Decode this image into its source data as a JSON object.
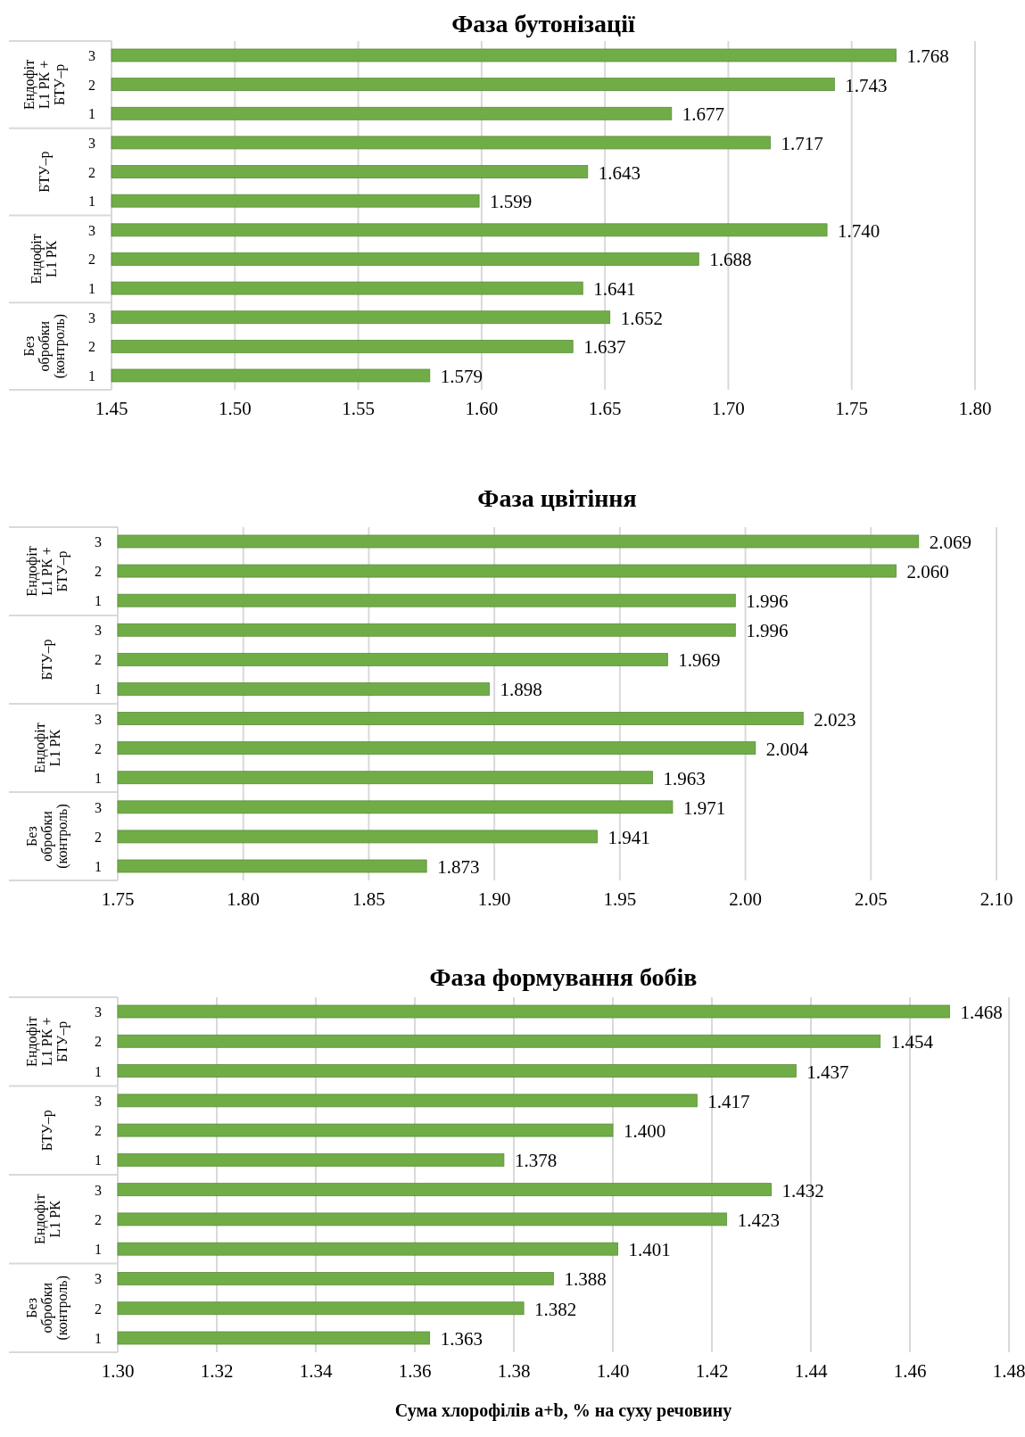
{
  "chart_data": [
    {
      "type": "bar",
      "orientation": "horizontal",
      "title": "Фаза бутонізації",
      "categories": [
        "3",
        "2",
        "1",
        "3",
        "2",
        "1",
        "3",
        "2",
        "1",
        "3",
        "2",
        "1"
      ],
      "values": [
        1.768,
        1.743,
        1.677,
        1.717,
        1.643,
        1.599,
        1.74,
        1.688,
        1.641,
        1.652,
        1.637,
        1.579
      ],
      "color": "#70ad47",
      "value_labels": [
        "1.768",
        "1.743",
        "1.677",
        "1.717",
        "1.643",
        "1.599",
        "1.740",
        "1.688",
        "1.641",
        "1.652",
        "1.637",
        "1.579"
      ],
      "xlim": [
        1.45,
        1.8
      ],
      "xticks": [
        {
          "value": 1.45,
          "label": "1.45"
        },
        {
          "value": 1.5,
          "label": "1.50"
        },
        {
          "value": 1.55,
          "label": "1.55"
        },
        {
          "value": 1.6,
          "label": "1.60"
        },
        {
          "value": 1.65,
          "label": "1.65"
        },
        {
          "value": 1.7,
          "label": "1.70"
        },
        {
          "value": 1.75,
          "label": "1.75"
        },
        {
          "value": 1.8,
          "label": "1.80"
        }
      ],
      "grid": "x",
      "annotations": [
        "Ендофіт\nL1 РК +\nБТУ–р",
        "БТУ–р",
        "Ендофіт\nL1 РК",
        "Без\nобробки\n(контроль)"
      ]
    },
    {
      "type": "bar",
      "orientation": "horizontal",
      "title": "Фаза цвітіння",
      "categories": [
        "3",
        "2",
        "1",
        "3",
        "2",
        "1",
        "3",
        "2",
        "1",
        "3",
        "2",
        "1"
      ],
      "values": [
        2.069,
        2.06,
        1.996,
        1.996,
        1.969,
        1.898,
        2.023,
        2.004,
        1.963,
        1.971,
        1.941,
        1.873
      ],
      "color": "#70ad47",
      "value_labels": [
        "2.069",
        "2.060",
        "1.996",
        "1.996",
        "1.969",
        "1.898",
        "2.023",
        "2.004",
        "1.963",
        "1.971",
        "1.941",
        "1.873"
      ],
      "xlim": [
        1.75,
        2.1
      ],
      "xticks": [
        {
          "value": 1.75,
          "label": "1.75"
        },
        {
          "value": 1.8,
          "label": "1.80"
        },
        {
          "value": 1.85,
          "label": "1.85"
        },
        {
          "value": 1.9,
          "label": "1.90"
        },
        {
          "value": 1.95,
          "label": "1.95"
        },
        {
          "value": 2.0,
          "label": "2.00"
        },
        {
          "value": 2.05,
          "label": "2.05"
        },
        {
          "value": 2.1,
          "label": "2.10"
        }
      ],
      "grid": "x",
      "annotations": [
        "Ендофіт\nL1 РК +\nБТУ–р",
        "БТУ–р",
        "Ендофіт\nL1 РК",
        "Без\nобробки\n(контроль)"
      ]
    },
    {
      "type": "bar",
      "orientation": "horizontal",
      "title": "Фаза формування бобів",
      "xlabel": "Сума хлорофілів a+b, % на суху речовину",
      "categories": [
        "3",
        "2",
        "1",
        "3",
        "2",
        "1",
        "3",
        "2",
        "1",
        "3",
        "2",
        "1"
      ],
      "values": [
        1.468,
        1.454,
        1.437,
        1.417,
        1.4,
        1.378,
        1.432,
        1.423,
        1.401,
        1.388,
        1.382,
        1.363
      ],
      "color": "#70ad47",
      "value_labels": [
        "1.468",
        "1.454",
        "1.437",
        "1.417",
        "1.400",
        "1.378",
        "1.432",
        "1.423",
        "1.401",
        "1.388",
        "1.382",
        "1.363"
      ],
      "xlim": [
        1.3,
        1.48
      ],
      "xticks": [
        {
          "value": 1.3,
          "label": "1.30"
        },
        {
          "value": 1.32,
          "label": "1.32"
        },
        {
          "value": 1.34,
          "label": "1.34"
        },
        {
          "value": 1.36,
          "label": "1.36"
        },
        {
          "value": 1.38,
          "label": "1.38"
        },
        {
          "value": 1.4,
          "label": "1.40"
        },
        {
          "value": 1.42,
          "label": "1.42"
        },
        {
          "value": 1.44,
          "label": "1.44"
        },
        {
          "value": 1.46,
          "label": "1.46"
        },
        {
          "value": 1.48,
          "label": "1.48"
        }
      ],
      "grid": "x",
      "annotations": [
        "Ендофіт\nL1 РК +\nБТУ–р",
        "БТУ–р",
        "Ендофіт\nL1 РК",
        "Без\nобробки\n(контроль)"
      ]
    }
  ]
}
